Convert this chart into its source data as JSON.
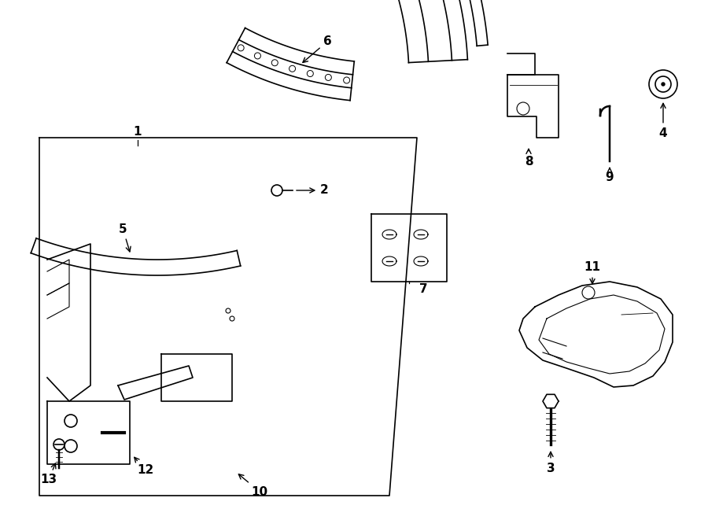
{
  "background_color": "#ffffff",
  "line_color": "#000000",
  "figure_width": 9.0,
  "figure_height": 6.61,
  "dpi": 100
}
